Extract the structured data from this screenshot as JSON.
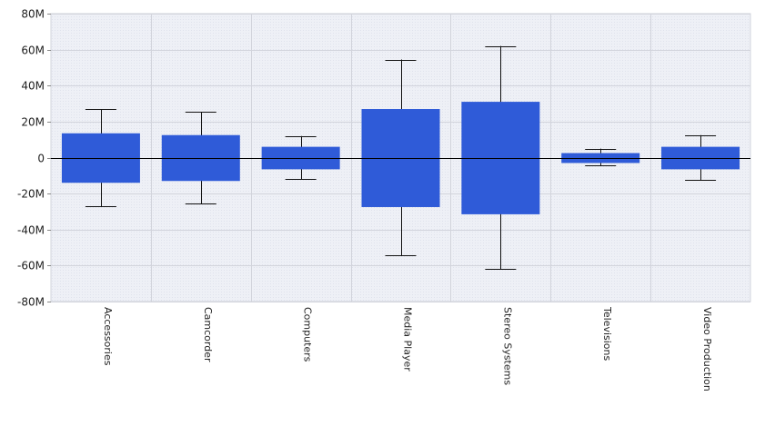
{
  "chart_data": {
    "type": "bar",
    "categories": [
      "Accessories",
      "Camcorder",
      "Computers",
      "Media Player",
      "Stereo Systems",
      "Televisions",
      "Video Production"
    ],
    "box_low": [
      -14,
      -13,
      -6.5,
      -27.5,
      -31.5,
      -3,
      -6.5
    ],
    "box_high": [
      13.5,
      12.5,
      6,
      27,
      31,
      2.5,
      6
    ],
    "whisker_low": [
      -27,
      -25.5,
      -12,
      -54.5,
      -62,
      -4.5,
      -12.5
    ],
    "whisker_high": [
      27,
      25.5,
      12,
      54.5,
      62,
      5,
      12.5
    ],
    "ylim": [
      -80,
      80
    ],
    "y_ticks": [
      {
        "value": 80,
        "label": "80M"
      },
      {
        "value": 60,
        "label": "60M"
      },
      {
        "value": 40,
        "label": "40M"
      },
      {
        "value": 20,
        "label": "20M"
      },
      {
        "value": 0,
        "label": "0"
      },
      {
        "value": -20,
        "label": "-20M"
      },
      {
        "value": -40,
        "label": "-40M"
      },
      {
        "value": -60,
        "label": "-60M"
      },
      {
        "value": -80,
        "label": "-80M"
      }
    ],
    "grid": true,
    "bar_color": "#2f5bd8",
    "plot_background": "#eef0f6",
    "grid_color": "#d2d4dc",
    "title": "",
    "xlabel": "",
    "ylabel": ""
  }
}
